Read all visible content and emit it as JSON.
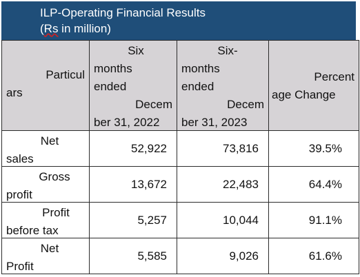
{
  "title": {
    "line1": "ILP-Operating Financial Results",
    "line2_open": "(",
    "line2_rs": "Rs",
    "line2_rest": " in million)"
  },
  "header": {
    "particulars_a": "Particul",
    "particulars_b": "ars",
    "col2": [
      "Six",
      "months",
      "ended",
      "Decem",
      "ber 31, 2022"
    ],
    "col3": [
      "Six-",
      "months",
      "ended",
      "Decem",
      "ber 31, 2023"
    ],
    "col4": [
      "Percent",
      "age Change"
    ]
  },
  "rows": [
    {
      "label_a": "Net",
      "label_b": "sales",
      "h1_2022": "52,922",
      "h1_2023": "73,816",
      "change": "39.5%"
    },
    {
      "label_a": "Gross",
      "label_b": "profit",
      "h1_2022": "13,672",
      "h1_2023": "22,483",
      "change": "64.4%"
    },
    {
      "label_a": "Profit",
      "label_b": "before tax",
      "h1_2022": "5,257",
      "h1_2023": "10,044",
      "change": "91.1%"
    },
    {
      "label_a": "Net",
      "label_b": "Profit",
      "h1_2022": "5,585",
      "h1_2023": "9,026",
      "change": "61.6%"
    }
  ]
}
